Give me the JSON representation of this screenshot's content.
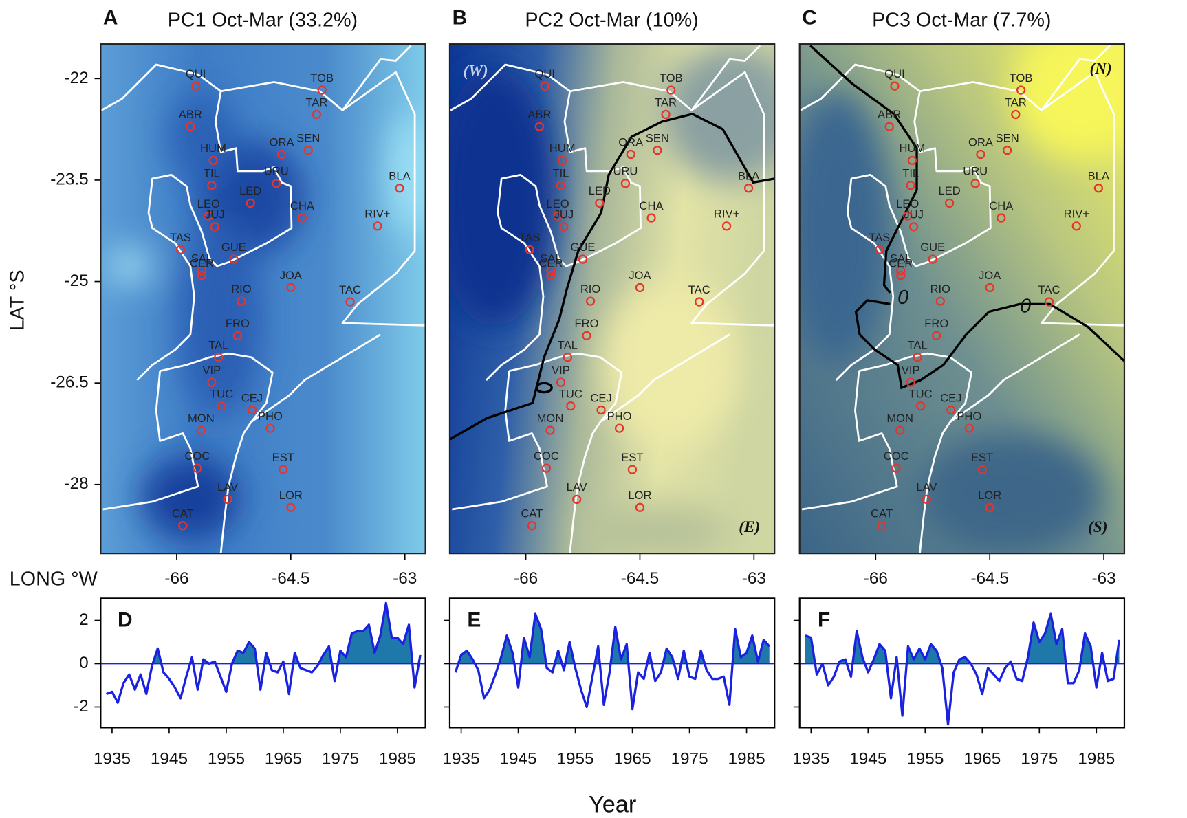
{
  "axis_labels": {
    "lat": "LAT °S",
    "lon": "LONG °W",
    "year": "Year"
  },
  "stations": {
    "names": [
      "QUI",
      "ABR",
      "HUM",
      "TIL",
      "LEO",
      "JUJ",
      "TAS",
      "SAL",
      "CER",
      "GUE",
      "LED",
      "URU",
      "ORA",
      "SEN",
      "TOB",
      "TAR",
      "CHA",
      "BLA",
      "RIV+",
      "JOA",
      "RIO",
      "TAC",
      "FRO",
      "TAL",
      "VIP",
      "TUC",
      "CEJ",
      "MON",
      "PHO",
      "COC",
      "EST",
      "LAV",
      "LOR",
      "CAT"
    ],
    "lon": [
      -65.75,
      -65.82,
      -65.52,
      -65.54,
      -65.58,
      -65.5,
      -65.95,
      -65.67,
      -65.67,
      -65.25,
      -65.03,
      -64.69,
      -64.62,
      -64.27,
      -64.09,
      -64.16,
      -64.35,
      -63.07,
      -63.36,
      -64.5,
      -65.15,
      -63.72,
      -65.2,
      -65.45,
      -65.54,
      -65.41,
      -65.01,
      -65.68,
      -64.77,
      -65.73,
      -64.6,
      -65.33,
      -64.5,
      -65.92
    ],
    "lat": [
      -22.11,
      -22.71,
      -23.21,
      -23.58,
      -24.03,
      -24.19,
      -24.53,
      -24.84,
      -24.91,
      -24.67,
      -23.84,
      -23.55,
      -23.12,
      -23.06,
      -22.17,
      -22.53,
      -24.06,
      -23.62,
      -24.18,
      -25.09,
      -25.29,
      -25.3,
      -25.8,
      -26.12,
      -26.49,
      -26.84,
      -26.9,
      -27.2,
      -27.17,
      -27.76,
      -27.78,
      -28.22,
      -28.34,
      -28.61
    ]
  },
  "chart_data": [
    {
      "type": "map",
      "panel": "A",
      "title": "PC1 Oct-Mar (33.2%)",
      "xlim": [
        -67.0,
        -62.73
      ],
      "ylim": [
        -29.02,
        -21.49
      ],
      "xticks": [
        -66,
        -64.5,
        -63
      ],
      "yticks": [
        -22,
        -23.5,
        -25,
        -26.5,
        -28
      ],
      "marker_color": "#e8332a"
    },
    {
      "type": "map",
      "panel": "B",
      "title": "PC2 Oct-Mar (10%)",
      "xlim": [
        -67.0,
        -62.73
      ],
      "ylim": [
        -29.02,
        -21.49
      ],
      "xticks": [
        -66,
        -64.5,
        -63
      ],
      "marker_color": "#e8332a",
      "annotations": [
        "(W)",
        "(E)"
      ]
    },
    {
      "type": "map",
      "panel": "C",
      "title": "PC3 Oct-Mar (7.7%)",
      "xlim": [
        -67.0,
        -62.73
      ],
      "ylim": [
        -29.02,
        -21.49
      ],
      "xticks": [
        -66,
        -64.5,
        -63
      ],
      "marker_color": "#e8332a",
      "annotations": [
        "(N)",
        "(S)"
      ],
      "contour_labels": [
        "0",
        "0"
      ]
    },
    {
      "type": "line",
      "panel": "D",
      "color": "#1a22e0",
      "fill_color": "#1f78aa",
      "xlim": [
        1933.0,
        1989.9
      ],
      "ylim": [
        -2.95,
        3.02
      ],
      "xticks": [
        1935,
        1945,
        1955,
        1965,
        1975,
        1985
      ],
      "yticks": [
        -2,
        0,
        2
      ],
      "x": [
        1934,
        1935,
        1936,
        1937,
        1938,
        1939,
        1940,
        1941,
        1942,
        1943,
        1944,
        1945,
        1946,
        1947,
        1948,
        1949,
        1950,
        1951,
        1952,
        1953,
        1954,
        1955,
        1956,
        1957,
        1958,
        1959,
        1960,
        1961,
        1962,
        1963,
        1964,
        1965,
        1966,
        1967,
        1968,
        1969,
        1970,
        1971,
        1972,
        1973,
        1974,
        1975,
        1976,
        1977,
        1978,
        1979,
        1980,
        1981,
        1982,
        1983,
        1984,
        1985,
        1986,
        1987,
        1988,
        1989
      ],
      "values": [
        -1.4,
        -1.3,
        -1.8,
        -0.9,
        -0.5,
        -1.2,
        -0.5,
        -1.4,
        -0.1,
        0.7,
        -0.4,
        -0.7,
        -1.1,
        -1.6,
        -0.6,
        0.3,
        -1.2,
        0.2,
        0.0,
        0.1,
        -0.6,
        -1.3,
        0.0,
        0.6,
        0.5,
        1.0,
        0.7,
        -1.2,
        0.5,
        -0.3,
        -0.4,
        0.1,
        -1.4,
        0.5,
        -0.2,
        -0.3,
        -0.4,
        -0.1,
        0.4,
        0.8,
        -0.8,
        0.6,
        0.3,
        1.4,
        1.5,
        1.5,
        1.8,
        0.5,
        1.3,
        2.8,
        1.2,
        1.2,
        0.9,
        1.8,
        -1.1,
        0.4
      ]
    },
    {
      "type": "line",
      "panel": "E",
      "color": "#1a22e0",
      "fill_color": "#1f78aa",
      "xlim": [
        1933.0,
        1989.9
      ],
      "ylim": [
        -2.95,
        3.02
      ],
      "xticks": [
        1935,
        1945,
        1955,
        1965,
        1975,
        1985
      ],
      "yticks": [
        -2,
        0,
        2
      ],
      "x": [
        1934,
        1935,
        1936,
        1937,
        1938,
        1939,
        1940,
        1941,
        1942,
        1943,
        1944,
        1945,
        1946,
        1947,
        1948,
        1949,
        1950,
        1951,
        1952,
        1953,
        1954,
        1955,
        1956,
        1957,
        1958,
        1959,
        1960,
        1961,
        1962,
        1963,
        1964,
        1965,
        1966,
        1967,
        1968,
        1969,
        1970,
        1971,
        1972,
        1973,
        1974,
        1975,
        1976,
        1977,
        1978,
        1979,
        1980,
        1981,
        1982,
        1983,
        1984,
        1985,
        1986,
        1987,
        1988,
        1989
      ],
      "values": [
        -0.4,
        0.4,
        0.6,
        0.2,
        -0.3,
        -1.6,
        -1.2,
        -0.5,
        0.3,
        1.3,
        0.5,
        -1.1,
        1.2,
        0.3,
        2.3,
        1.6,
        -0.2,
        -0.4,
        0.6,
        -0.3,
        1.0,
        -0.2,
        -1.2,
        -2.0,
        -0.6,
        0.8,
        -1.9,
        -0.4,
        1.7,
        0.2,
        0.9,
        -2.1,
        -0.4,
        -0.7,
        0.5,
        -0.8,
        -0.4,
        0.7,
        0.3,
        -0.7,
        0.6,
        -0.6,
        -0.7,
        0.6,
        -0.3,
        -0.7,
        -0.7,
        -0.6,
        -1.9,
        1.6,
        0.3,
        0.5,
        1.3,
        0.1,
        1.1,
        0.8
      ]
    },
    {
      "type": "line",
      "panel": "F",
      "color": "#1a22e0",
      "fill_color": "#1f78aa",
      "xlim": [
        1933.0,
        1989.9
      ],
      "ylim": [
        -2.95,
        3.02
      ],
      "xticks": [
        1935,
        1945,
        1955,
        1965,
        1975,
        1985
      ],
      "yticks": [
        -2,
        0,
        2
      ],
      "x": [
        1934,
        1935,
        1936,
        1937,
        1938,
        1939,
        1940,
        1941,
        1942,
        1943,
        1944,
        1945,
        1946,
        1947,
        1948,
        1949,
        1950,
        1951,
        1952,
        1953,
        1954,
        1955,
        1956,
        1957,
        1958,
        1959,
        1960,
        1961,
        1962,
        1963,
        1964,
        1965,
        1966,
        1967,
        1968,
        1969,
        1970,
        1971,
        1972,
        1973,
        1974,
        1975,
        1976,
        1977,
        1978,
        1979,
        1980,
        1981,
        1982,
        1983,
        1984,
        1985,
        1986,
        1987,
        1988,
        1989
      ],
      "values": [
        1.3,
        1.2,
        -0.5,
        0.0,
        -1.0,
        -0.6,
        0.1,
        0.2,
        -0.6,
        1.5,
        0.3,
        -0.4,
        0.2,
        0.9,
        0.6,
        -1.6,
        0.3,
        -2.4,
        0.8,
        0.2,
        0.7,
        0.2,
        0.9,
        0.6,
        -0.2,
        -2.8,
        -0.4,
        0.2,
        0.3,
        0.0,
        -0.5,
        -1.4,
        -0.2,
        -0.5,
        -0.8,
        -0.2,
        0.1,
        -0.7,
        -0.8,
        0.3,
        1.9,
        1.0,
        1.4,
        2.3,
        0.9,
        1.6,
        -0.9,
        -0.9,
        -0.3,
        1.4,
        0.8,
        -1.1,
        0.5,
        -0.8,
        -0.7,
        1.1
      ]
    }
  ]
}
